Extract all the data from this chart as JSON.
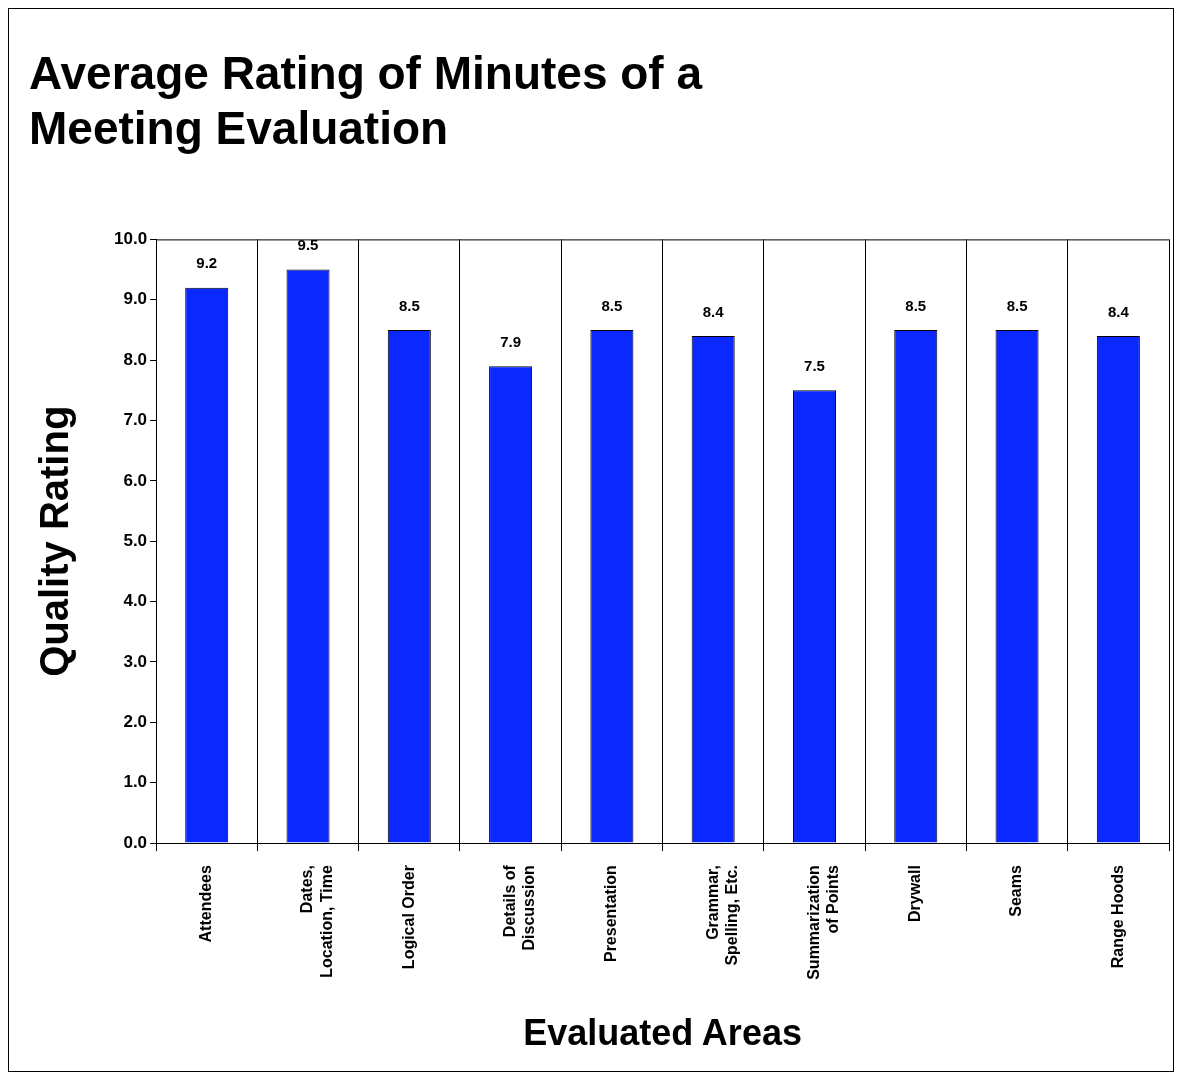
{
  "chart_data": {
    "type": "bar",
    "title": "Average Rating of Minutes of a\nMeeting Evaluation",
    "xlabel": "Evaluated Areas",
    "ylabel": "Quality Rating",
    "categories": [
      "Attendees",
      "Dates,\nLocation, Time",
      "Logical Order",
      "Details of\nDiscussion",
      "Presentation",
      "Grammar,\nSpelling, Etc.",
      "Summarization\nof Points",
      "Drywall",
      "Seams",
      "Range Hoods"
    ],
    "values": [
      9.2,
      9.5,
      8.5,
      7.9,
      8.5,
      8.4,
      7.5,
      8.5,
      8.5,
      8.4
    ],
    "color": "#0a28ff",
    "data_labels": true,
    "grid": "x",
    "legend": false,
    "ylim": [
      0,
      10
    ],
    "yticks": [
      {
        "value": 0,
        "label": "0.0"
      },
      {
        "value": 1,
        "label": "1.0"
      },
      {
        "value": 2,
        "label": "2.0"
      },
      {
        "value": 3,
        "label": "3.0"
      },
      {
        "value": 4,
        "label": "4.0"
      },
      {
        "value": 5,
        "label": "5.0"
      },
      {
        "value": 6,
        "label": "6.0"
      },
      {
        "value": 7,
        "label": "7.0"
      },
      {
        "value": 8,
        "label": "8.0"
      },
      {
        "value": 9,
        "label": "9.0"
      },
      {
        "value": 10,
        "label": "10.0"
      }
    ]
  }
}
